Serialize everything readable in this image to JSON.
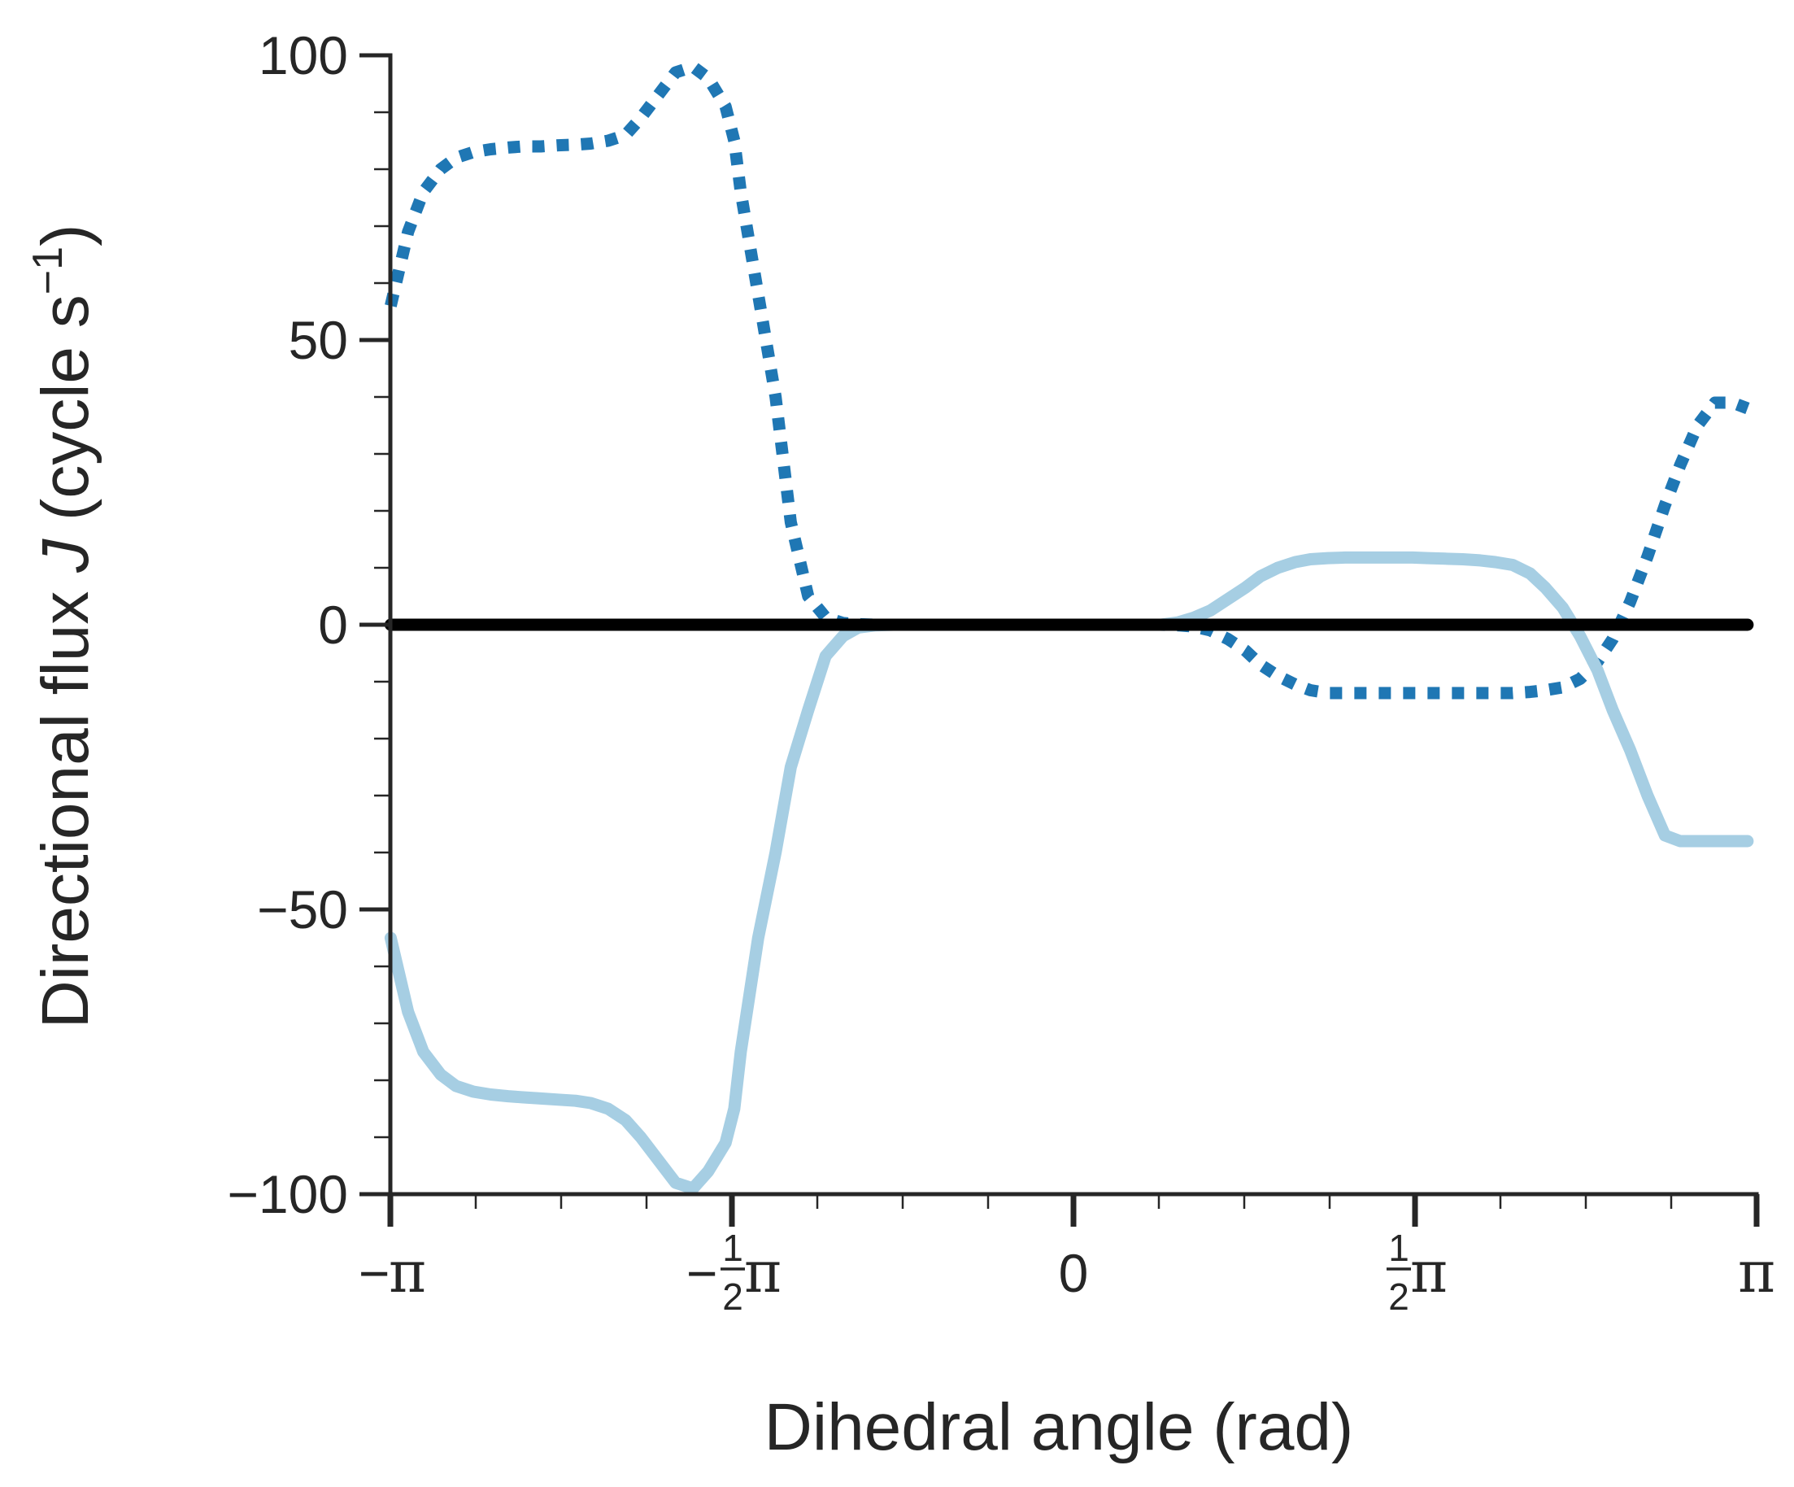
{
  "chart_data": {
    "type": "line",
    "xlabel": "Dihedral angle (rad)",
    "ylabel": {
      "prefix": "Directional flux ",
      "var": "J",
      "unit_open": " (cycle s",
      "unit_sup": "−1",
      "unit_close": ")"
    },
    "xlim": [
      -3.14159,
      3.14159
    ],
    "ylim": [
      -100,
      100
    ],
    "x_ticks": [
      {
        "value": -3.14159,
        "sign": "−",
        "frac": "",
        "sym": "π"
      },
      {
        "value": -1.5708,
        "sign": "−",
        "frac": "1/2",
        "sym": "π"
      },
      {
        "value": 0,
        "sign": "",
        "frac": "",
        "sym": "0"
      },
      {
        "value": 1.5708,
        "sign": "",
        "frac": "1/2",
        "sym": "π"
      },
      {
        "value": 3.14159,
        "sign": "",
        "frac": "",
        "sym": "π"
      }
    ],
    "y_ticks": [
      {
        "value": 100,
        "label": "100"
      },
      {
        "value": 50,
        "label": "50"
      },
      {
        "value": 0,
        "label": "0"
      },
      {
        "value": -50,
        "label": "−50"
      },
      {
        "value": -100,
        "label": "−100"
      }
    ],
    "grid": false,
    "legend": "none",
    "series": [
      {
        "style": "dotted",
        "color": "#1f77b4",
        "x": [
          -3.14,
          -3.06,
          -2.99,
          -2.91,
          -2.84,
          -2.76,
          -2.68,
          -2.6,
          -2.53,
          -2.45,
          -2.37,
          -2.29,
          -2.22,
          -2.14,
          -2.06,
          -1.99,
          -1.91,
          -1.83,
          -1.75,
          -1.68,
          -1.6,
          -1.56,
          -1.53,
          -1.45,
          -1.37,
          -1.3,
          -1.22,
          -1.14,
          -1.06,
          -0.99,
          -0.91,
          -0.83,
          -0.76,
          -0.68,
          -0.6,
          -0.53,
          -0.45,
          -0.37,
          -0.3,
          -0.22,
          -0.14,
          -0.06,
          0.01,
          0.09,
          0.17,
          0.24,
          0.32,
          0.4,
          0.48,
          0.55,
          0.63,
          0.71,
          0.79,
          0.86,
          0.94,
          1.02,
          1.09,
          1.17,
          1.25,
          1.33,
          1.4,
          1.48,
          1.56,
          1.63,
          1.71,
          1.79,
          1.87,
          1.94,
          2.02,
          2.1,
          2.17,
          2.25,
          2.33,
          2.41,
          2.48,
          2.56,
          2.64,
          2.72,
          2.79,
          2.87,
          2.95,
          3.03,
          3.1
        ],
        "y": [
          56,
          69,
          76,
          80,
          82,
          83,
          83.5,
          83.8,
          84,
          84,
          84.2,
          84.3,
          84.5,
          85,
          86,
          89,
          93,
          97,
          98,
          96,
          91,
          85,
          76,
          58,
          40,
          18,
          5,
          1.3,
          0.3,
          0.1,
          0,
          0,
          0,
          0,
          0,
          0,
          0,
          0,
          0,
          0,
          0,
          0,
          0,
          0,
          0,
          0,
          0,
          0,
          -0.1,
          -0.3,
          -1,
          -2.5,
          -4.5,
          -7,
          -9,
          -10.5,
          -11.5,
          -12,
          -12,
          -12,
          -12,
          -12,
          -12,
          -12,
          -12,
          -12,
          -12,
          -12,
          -12,
          -11.8,
          -11.5,
          -11,
          -9.5,
          -6.5,
          -2.5,
          4,
          12,
          21,
          28,
          35,
          39,
          39,
          38
        ]
      },
      {
        "style": "solid",
        "color": "#a6cee3",
        "x": [
          -3.14,
          -3.06,
          -2.99,
          -2.91,
          -2.84,
          -2.76,
          -2.68,
          -2.6,
          -2.53,
          -2.45,
          -2.37,
          -2.29,
          -2.22,
          -2.14,
          -2.06,
          -1.99,
          -1.91,
          -1.83,
          -1.75,
          -1.68,
          -1.6,
          -1.56,
          -1.53,
          -1.45,
          -1.37,
          -1.3,
          -1.22,
          -1.14,
          -1.06,
          -0.99,
          -0.91,
          -0.83,
          -0.76,
          -0.68,
          -0.6,
          -0.53,
          -0.45,
          -0.37,
          -0.3,
          -0.22,
          -0.14,
          -0.06,
          0.01,
          0.09,
          0.17,
          0.24,
          0.32,
          0.4,
          0.48,
          0.55,
          0.63,
          0.71,
          0.79,
          0.86,
          0.94,
          1.02,
          1.09,
          1.17,
          1.25,
          1.33,
          1.4,
          1.48,
          1.56,
          1.63,
          1.71,
          1.79,
          1.87,
          1.94,
          2.02,
          2.1,
          2.17,
          2.25,
          2.33,
          2.41,
          2.48,
          2.56,
          2.64,
          2.72,
          2.79,
          2.87,
          2.95,
          3.03,
          3.1
        ],
        "y": [
          -55,
          -68,
          -75,
          -79,
          -81,
          -82,
          -82.5,
          -82.8,
          -83,
          -83.2,
          -83.4,
          -83.6,
          -84,
          -85,
          -87,
          -90,
          -94,
          -98,
          -99,
          -96,
          -91,
          -85,
          -75,
          -55,
          -40,
          -25,
          -15,
          -5.5,
          -2,
          -0.5,
          -0.1,
          0,
          0,
          0,
          0,
          0,
          0,
          0,
          0,
          0,
          0,
          0,
          0,
          0,
          0,
          0,
          0,
          0,
          0.4,
          1.2,
          2.5,
          4.5,
          6.5,
          8.5,
          10,
          11,
          11.5,
          11.7,
          11.8,
          11.8,
          11.8,
          11.8,
          11.8,
          11.7,
          11.6,
          11.5,
          11.3,
          11,
          10.5,
          9,
          6.5,
          3,
          -2,
          -8,
          -15,
          -22,
          -30,
          -37,
          -38,
          -38,
          -38,
          -38,
          -38
        ]
      },
      {
        "style": "solid",
        "color": "#000000",
        "x": [
          -3.14,
          3.1
        ],
        "y": [
          0,
          0
        ]
      }
    ]
  }
}
